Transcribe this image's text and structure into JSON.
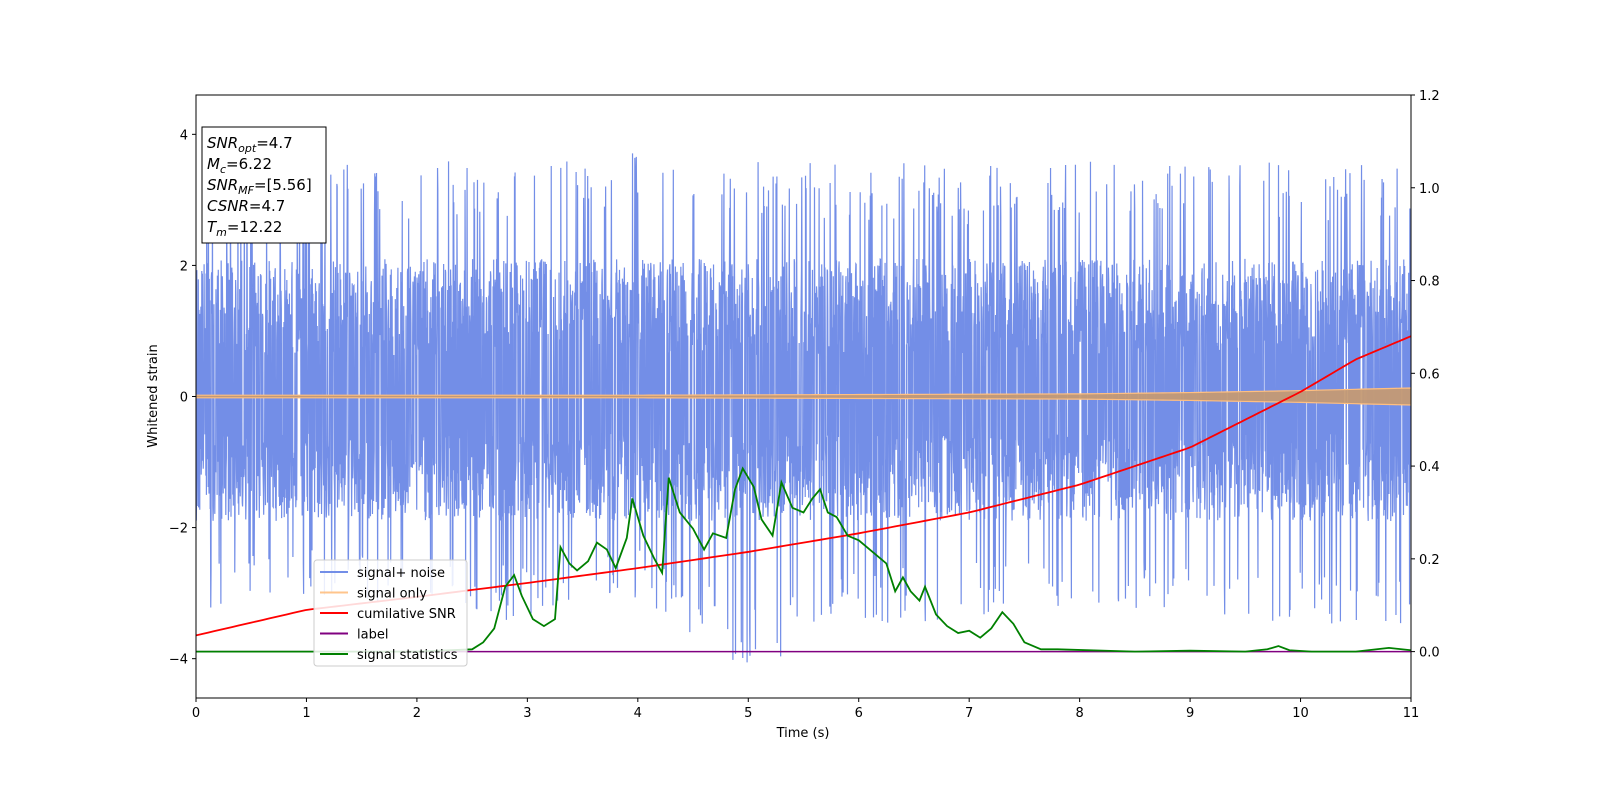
{
  "chart_data": {
    "type": "line",
    "xlabel": "Time (s)",
    "ylabel": "Whitened strain",
    "xlim": [
      0,
      11
    ],
    "ylim": [
      -4.6,
      4.6
    ],
    "y2lim": [
      -0.1,
      1.2
    ],
    "xticks": [
      0,
      1,
      2,
      3,
      4,
      5,
      6,
      7,
      8,
      9,
      10,
      11
    ],
    "yticks": [
      -4,
      -2,
      0,
      2,
      4
    ],
    "y2ticks": [
      0.0,
      0.2,
      0.4,
      0.6,
      0.8,
      1.0,
      1.2
    ],
    "grid": false,
    "legend_position": "lower-left",
    "colors": {
      "signal_noise": "#6b88e6",
      "signal_only": "#ffbf80",
      "signal_only_fill": "#c49a74",
      "cumulative_snr": "#ff0000",
      "label": "#800080",
      "signal_statistics": "#008000"
    },
    "annotation_lines": [
      {
        "name": "SNR",
        "sub": "opt",
        "value": "=4.7"
      },
      {
        "name": "M",
        "sub": "c",
        "value": "=6.22"
      },
      {
        "name": "SNR",
        "sub": "MF",
        "value": "=[5.56]"
      },
      {
        "name": "CSNR",
        "sub": "",
        "value": "=4.7"
      },
      {
        "name": "T",
        "sub": "m",
        "value": "=12.22"
      }
    ],
    "series": [
      {
        "name": "signal+ noise",
        "axis": "left",
        "kind": "noise",
        "envelope_x": [
          0,
          1,
          2,
          3,
          4,
          5,
          6,
          7,
          8,
          9,
          10,
          11
        ],
        "upper": [
          3.6,
          3.6,
          3.6,
          3.6,
          3.8,
          3.7,
          3.6,
          3.5,
          3.6,
          3.7,
          3.6,
          3.5
        ],
        "lower": [
          -3.3,
          -3.1,
          -3.2,
          -3.5,
          -3.1,
          -4.2,
          -3.5,
          -3.4,
          -3.2,
          -3.3,
          -3.5,
          -3.6
        ],
        "core_upper": 2.1,
        "core_lower": -1.9
      },
      {
        "name": "signal only",
        "axis": "left",
        "kind": "band",
        "x": [
          0,
          2,
          4,
          6,
          8,
          9,
          10,
          11
        ],
        "amplitude": [
          0.02,
          0.02,
          0.02,
          0.03,
          0.04,
          0.06,
          0.09,
          0.13
        ]
      },
      {
        "name": "cumilative SNR",
        "axis": "right",
        "x": [
          0,
          1,
          2,
          3,
          4,
          5,
          6,
          7,
          8,
          9,
          10,
          10.5,
          11
        ],
        "y": [
          0.035,
          0.09,
          0.118,
          0.148,
          0.18,
          0.215,
          0.255,
          0.3,
          0.36,
          0.44,
          0.56,
          0.63,
          0.68
        ]
      },
      {
        "name": "label",
        "axis": "right",
        "x": [
          0,
          11
        ],
        "y": [
          0.0,
          0.0
        ]
      },
      {
        "name": "signal statistics",
        "axis": "right",
        "x": [
          0,
          2.0,
          2.5,
          2.6,
          2.7,
          2.8,
          2.88,
          2.95,
          3.05,
          3.15,
          3.25,
          3.3,
          3.38,
          3.45,
          3.55,
          3.63,
          3.72,
          3.8,
          3.9,
          3.95,
          4.05,
          4.15,
          4.22,
          4.28,
          4.38,
          4.5,
          4.6,
          4.68,
          4.8,
          4.88,
          4.95,
          5.05,
          5.12,
          5.22,
          5.3,
          5.4,
          5.5,
          5.58,
          5.65,
          5.72,
          5.8,
          5.9,
          6.0,
          6.1,
          6.25,
          6.33,
          6.4,
          6.47,
          6.55,
          6.6,
          6.7,
          6.8,
          6.9,
          7.0,
          7.1,
          7.2,
          7.3,
          7.4,
          7.5,
          7.65,
          7.8,
          8.5,
          9.0,
          9.5,
          9.7,
          9.8,
          9.9,
          10.1,
          10.5,
          10.8,
          11.0
        ],
        "y": [
          0.0,
          0.0,
          0.005,
          0.02,
          0.05,
          0.14,
          0.165,
          0.12,
          0.07,
          0.055,
          0.07,
          0.225,
          0.19,
          0.175,
          0.195,
          0.235,
          0.22,
          0.18,
          0.245,
          0.33,
          0.25,
          0.2,
          0.17,
          0.375,
          0.3,
          0.265,
          0.22,
          0.255,
          0.245,
          0.35,
          0.395,
          0.355,
          0.285,
          0.25,
          0.365,
          0.31,
          0.3,
          0.33,
          0.35,
          0.3,
          0.29,
          0.25,
          0.24,
          0.22,
          0.19,
          0.13,
          0.16,
          0.13,
          0.11,
          0.14,
          0.08,
          0.055,
          0.04,
          0.045,
          0.03,
          0.05,
          0.085,
          0.06,
          0.02,
          0.005,
          0.005,
          0.0,
          0.002,
          0.0,
          0.005,
          0.012,
          0.003,
          0.0,
          0.0,
          0.008,
          0.003
        ]
      }
    ]
  }
}
